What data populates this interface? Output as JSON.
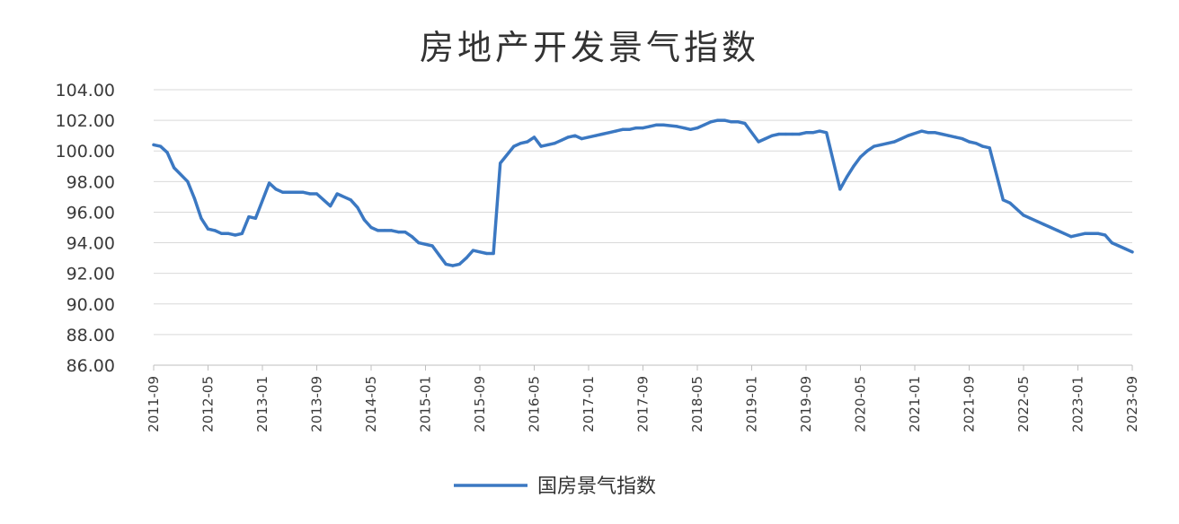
{
  "chart_data": {
    "type": "line",
    "title": "房地产开发景气指数",
    "xlabel": "",
    "ylabel": "",
    "ylim": [
      86,
      104
    ],
    "yticks": [
      "104.00",
      "102.00",
      "100.00",
      "98.00",
      "96.00",
      "94.00",
      "92.00",
      "90.00",
      "88.00",
      "86.00"
    ],
    "xticks": [
      "2011-09",
      "2012-05",
      "2013-01",
      "2013-09",
      "2014-05",
      "2015-01",
      "2015-09",
      "2016-05",
      "2017-01",
      "2017-09",
      "2018-05",
      "2019-01",
      "2019-09",
      "2020-05",
      "2021-01",
      "2021-09",
      "2022-05",
      "2023-01",
      "2023-09"
    ],
    "grid": true,
    "legend_position": "bottom",
    "series": [
      {
        "name": "国房景气指数",
        "color": "#3b78c2",
        "points": [
          [
            "2011-09",
            100.4
          ],
          [
            "2011-10",
            100.3
          ],
          [
            "2011-11",
            99.9
          ],
          [
            "2011-12",
            98.9
          ],
          [
            "2012-02",
            98.0
          ],
          [
            "2012-03",
            96.9
          ],
          [
            "2012-04",
            95.6
          ],
          [
            "2012-05",
            94.9
          ],
          [
            "2012-06",
            94.8
          ],
          [
            "2012-07",
            94.6
          ],
          [
            "2012-08",
            94.6
          ],
          [
            "2012-09",
            94.5
          ],
          [
            "2012-10",
            94.6
          ],
          [
            "2012-11",
            95.7
          ],
          [
            "2012-12",
            95.6
          ],
          [
            "2013-02",
            97.9
          ],
          [
            "2013-03",
            97.5
          ],
          [
            "2013-04",
            97.3
          ],
          [
            "2013-05",
            97.3
          ],
          [
            "2013-06",
            97.3
          ],
          [
            "2013-07",
            97.3
          ],
          [
            "2013-08",
            97.2
          ],
          [
            "2013-09",
            97.2
          ],
          [
            "2013-10",
            96.8
          ],
          [
            "2013-11",
            96.4
          ],
          [
            "2013-12",
            97.2
          ],
          [
            "2014-02",
            96.8
          ],
          [
            "2014-03",
            96.3
          ],
          [
            "2014-04",
            95.5
          ],
          [
            "2014-05",
            95.0
          ],
          [
            "2014-06",
            94.8
          ],
          [
            "2014-07",
            94.8
          ],
          [
            "2014-08",
            94.8
          ],
          [
            "2014-09",
            94.7
          ],
          [
            "2014-10",
            94.7
          ],
          [
            "2014-11",
            94.4
          ],
          [
            "2014-12",
            94.0
          ],
          [
            "2015-02",
            93.8
          ],
          [
            "2015-03",
            93.2
          ],
          [
            "2015-04",
            92.6
          ],
          [
            "2015-05",
            92.5
          ],
          [
            "2015-06",
            92.6
          ],
          [
            "2015-07",
            93.0
          ],
          [
            "2015-08",
            93.5
          ],
          [
            "2015-09",
            93.4
          ],
          [
            "2015-10",
            93.3
          ],
          [
            "2015-11",
            93.3
          ],
          [
            "2015-12",
            99.2
          ],
          [
            "2016-02",
            100.3
          ],
          [
            "2016-03",
            100.5
          ],
          [
            "2016-04",
            100.6
          ],
          [
            "2016-05",
            100.9
          ],
          [
            "2016-06",
            100.3
          ],
          [
            "2016-07",
            100.4
          ],
          [
            "2016-08",
            100.5
          ],
          [
            "2016-09",
            100.7
          ],
          [
            "2016-10",
            100.9
          ],
          [
            "2016-11",
            101.0
          ],
          [
            "2016-12",
            100.8
          ],
          [
            "2017-02",
            101.0
          ],
          [
            "2017-03",
            101.1
          ],
          [
            "2017-04",
            101.2
          ],
          [
            "2017-05",
            101.3
          ],
          [
            "2017-06",
            101.4
          ],
          [
            "2017-07",
            101.4
          ],
          [
            "2017-08",
            101.5
          ],
          [
            "2017-09",
            101.5
          ],
          [
            "2017-10",
            101.6
          ],
          [
            "2017-11",
            101.7
          ],
          [
            "2017-12",
            101.7
          ],
          [
            "2018-02",
            101.6
          ],
          [
            "2018-03",
            101.5
          ],
          [
            "2018-04",
            101.4
          ],
          [
            "2018-05",
            101.5
          ],
          [
            "2018-06",
            101.7
          ],
          [
            "2018-07",
            101.9
          ],
          [
            "2018-08",
            102.0
          ],
          [
            "2018-09",
            102.0
          ],
          [
            "2018-10",
            101.9
          ],
          [
            "2018-11",
            101.9
          ],
          [
            "2018-12",
            101.8
          ],
          [
            "2019-02",
            100.6
          ],
          [
            "2019-03",
            100.8
          ],
          [
            "2019-04",
            101.0
          ],
          [
            "2019-05",
            101.1
          ],
          [
            "2019-06",
            101.1
          ],
          [
            "2019-07",
            101.1
          ],
          [
            "2019-08",
            101.1
          ],
          [
            "2019-09",
            101.2
          ],
          [
            "2019-10",
            101.2
          ],
          [
            "2019-11",
            101.3
          ],
          [
            "2019-12",
            101.2
          ],
          [
            "2020-02",
            97.5
          ],
          [
            "2020-03",
            98.3
          ],
          [
            "2020-04",
            99.0
          ],
          [
            "2020-05",
            99.6
          ],
          [
            "2020-06",
            100.0
          ],
          [
            "2020-07",
            100.3
          ],
          [
            "2020-08",
            100.4
          ],
          [
            "2020-09",
            100.5
          ],
          [
            "2020-10",
            100.6
          ],
          [
            "2020-11",
            100.8
          ],
          [
            "2020-12",
            101.0
          ],
          [
            "2021-02",
            101.3
          ],
          [
            "2021-03",
            101.2
          ],
          [
            "2021-04",
            101.2
          ],
          [
            "2021-05",
            101.1
          ],
          [
            "2021-06",
            101.0
          ],
          [
            "2021-07",
            100.9
          ],
          [
            "2021-08",
            100.8
          ],
          [
            "2021-09",
            100.6
          ],
          [
            "2021-10",
            100.5
          ],
          [
            "2021-11",
            100.3
          ],
          [
            "2021-12",
            100.2
          ],
          [
            "2022-02",
            96.8
          ],
          [
            "2022-03",
            96.6
          ],
          [
            "2022-04",
            96.2
          ],
          [
            "2022-05",
            95.8
          ],
          [
            "2022-06",
            95.6
          ],
          [
            "2022-07",
            95.4
          ],
          [
            "2022-08",
            95.2
          ],
          [
            "2022-09",
            95.0
          ],
          [
            "2022-10",
            94.8
          ],
          [
            "2022-11",
            94.6
          ],
          [
            "2022-12",
            94.4
          ],
          [
            "2023-02",
            94.6
          ],
          [
            "2023-03",
            94.6
          ],
          [
            "2023-04",
            94.6
          ],
          [
            "2023-05",
            94.5
          ],
          [
            "2023-06",
            94.0
          ],
          [
            "2023-07",
            93.8
          ],
          [
            "2023-08",
            93.6
          ],
          [
            "2023-09",
            93.4
          ]
        ]
      }
    ]
  },
  "legend": {
    "label": "国房景气指数"
  }
}
